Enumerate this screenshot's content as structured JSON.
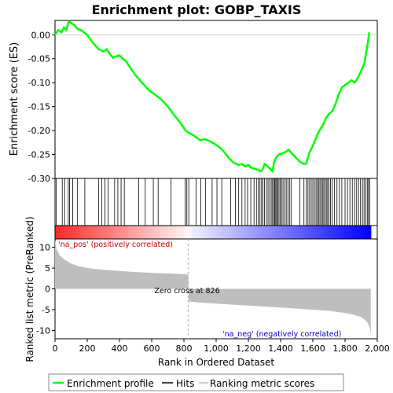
{
  "title": "Enrichment plot: GOBP_TAXIS",
  "es_axis_label": "Enrichment score (ES)",
  "metric_axis_label": "Ranked list metric (PreRanked)",
  "x_axis_label": "Rank in Ordered Dataset",
  "pos_label": "'na_pos' (positively correlated)",
  "neg_label": "'na_neg' (negatively correlated)",
  "zero_cross_label": "Zero cross at 826",
  "legend": {
    "profile": "Enrichment profile",
    "hits": "Hits",
    "ranking": "Ranking metric scores"
  },
  "colors": {
    "profile": "#00ff00",
    "hits": "#000000",
    "metric_fill": "#bebebe",
    "pos_strong": "#ff0000",
    "neg_strong": "#0000ff"
  },
  "chart_data": {
    "type": "line",
    "x_range": [
      0,
      2000
    ],
    "x_ticks": [
      0,
      200,
      400,
      600,
      800,
      1000,
      1200,
      1400,
      1600,
      1800,
      2000
    ],
    "x_tick_labels": [
      "0",
      "200",
      "400",
      "600",
      "800",
      "1,000",
      "1,200",
      "1,400",
      "1,600",
      "1,800",
      "2,000"
    ],
    "es_range": [
      -0.3,
      0.03
    ],
    "es_ticks": [
      0.0,
      -0.05,
      -0.1,
      -0.15,
      -0.2,
      -0.25,
      -0.3
    ],
    "es_tick_labels": [
      "0.00",
      "-0.05",
      "-0.10",
      "-0.15",
      "-0.20",
      "-0.25",
      "-0.30"
    ],
    "metric_range": [
      -12,
      12
    ],
    "metric_ticks": [
      10,
      5,
      0,
      -5,
      -10
    ],
    "metric_tick_labels": [
      "10",
      "5",
      "0",
      "-5",
      "-10"
    ],
    "total_ranks": 1960,
    "zero_cross": 826,
    "enrichment_profile": {
      "x": [
        0,
        20,
        40,
        55,
        70,
        85,
        100,
        120,
        140,
        160,
        180,
        200,
        230,
        270,
        300,
        320,
        340,
        360,
        380,
        400,
        420,
        440,
        470,
        500,
        540,
        580,
        620,
        660,
        700,
        740,
        780,
        810,
        830,
        860,
        880,
        900,
        930,
        960,
        990,
        1020,
        1050,
        1080,
        1110,
        1140,
        1160,
        1180,
        1200,
        1220,
        1240,
        1260,
        1280,
        1290,
        1300,
        1320,
        1340,
        1350,
        1360,
        1375,
        1390,
        1410,
        1430,
        1450,
        1470,
        1490,
        1510,
        1530,
        1550,
        1560,
        1570,
        1580,
        1600,
        1620,
        1640,
        1660,
        1680,
        1700,
        1720,
        1740,
        1760,
        1780,
        1800,
        1820,
        1840,
        1860,
        1880,
        1900,
        1920,
        1930,
        1940,
        1950
      ],
      "y": [
        0.0,
        0.01,
        0.005,
        0.015,
        0.01,
        0.028,
        0.025,
        0.02,
        0.012,
        0.01,
        0.005,
        0.0,
        -0.015,
        -0.03,
        -0.035,
        -0.03,
        -0.04,
        -0.048,
        -0.045,
        -0.043,
        -0.05,
        -0.055,
        -0.07,
        -0.085,
        -0.1,
        -0.115,
        -0.125,
        -0.135,
        -0.15,
        -0.168,
        -0.185,
        -0.2,
        -0.205,
        -0.21,
        -0.215,
        -0.22,
        -0.218,
        -0.222,
        -0.228,
        -0.235,
        -0.245,
        -0.258,
        -0.268,
        -0.272,
        -0.27,
        -0.275,
        -0.272,
        -0.278,
        -0.28,
        -0.282,
        -0.285,
        -0.28,
        -0.27,
        -0.275,
        -0.282,
        -0.285,
        -0.265,
        -0.255,
        -0.25,
        -0.248,
        -0.245,
        -0.24,
        -0.248,
        -0.255,
        -0.262,
        -0.268,
        -0.27,
        -0.268,
        -0.255,
        -0.245,
        -0.232,
        -0.215,
        -0.2,
        -0.19,
        -0.175,
        -0.165,
        -0.16,
        -0.145,
        -0.125,
        -0.11,
        -0.105,
        -0.1,
        -0.095,
        -0.1,
        -0.09,
        -0.075,
        -0.06,
        -0.04,
        -0.02,
        0.005
      ]
    },
    "hit_ranks": [
      8,
      45,
      60,
      82,
      90,
      110,
      140,
      185,
      270,
      290,
      310,
      330,
      370,
      390,
      410,
      430,
      520,
      560,
      610,
      640,
      720,
      808,
      818,
      830,
      875,
      905,
      935,
      975,
      1005,
      1035,
      1090,
      1120,
      1140,
      1160,
      1180,
      1195,
      1215,
      1235,
      1250,
      1262,
      1272,
      1282,
      1290,
      1300,
      1312,
      1322,
      1332,
      1342,
      1350,
      1358,
      1364,
      1370,
      1376,
      1382,
      1390,
      1398,
      1406,
      1415,
      1425,
      1435,
      1445,
      1455,
      1465,
      1520,
      1545,
      1560,
      1570,
      1580,
      1590,
      1600,
      1610,
      1620,
      1628,
      1636,
      1644,
      1652,
      1660,
      1668,
      1676,
      1684,
      1692,
      1700,
      1710,
      1720,
      1735,
      1750,
      1765,
      1780,
      1800,
      1815,
      1830,
      1845,
      1860,
      1872,
      1884,
      1896,
      1908,
      1918,
      1928,
      1938,
      1946,
      1952
    ],
    "metric_curve": {
      "rank": [
        0,
        10,
        30,
        60,
        100,
        150,
        200,
        300,
        400,
        500,
        600,
        700,
        800,
        826,
        830,
        900,
        1000,
        1100,
        1200,
        1300,
        1400,
        1500,
        1600,
        1700,
        1800,
        1850,
        1900,
        1930,
        1950,
        1960
      ],
      "value": [
        11.5,
        9.5,
        8.0,
        7.0,
        6.1,
        5.4,
        5.0,
        4.6,
        4.3,
        4.05,
        3.85,
        3.7,
        3.55,
        3.5,
        -3.0,
        -3.3,
        -3.55,
        -3.8,
        -4.0,
        -4.25,
        -4.5,
        -4.75,
        -5.0,
        -5.3,
        -5.8,
        -6.2,
        -6.8,
        -7.6,
        -8.8,
        -11.0
      ]
    }
  }
}
